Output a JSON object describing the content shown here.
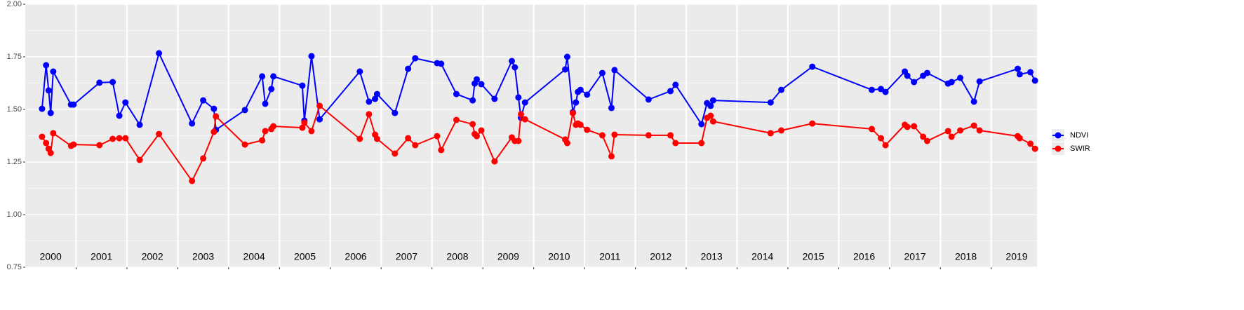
{
  "chart_data": {
    "type": "line",
    "x": [
      2000.33,
      2000.41,
      2000.46,
      2000.5,
      2000.55,
      2000.9,
      2000.95,
      2001.46,
      2001.72,
      2001.85,
      2001.97,
      2002.25,
      2002.63,
      2003.28,
      2003.5,
      2003.71,
      2003.75,
      2004.32,
      2004.66,
      2004.72,
      2004.84,
      2004.88,
      2005.45,
      2005.49,
      2005.63,
      2005.79,
      2006.58,
      2006.76,
      2006.88,
      2006.92,
      2007.27,
      2007.53,
      2007.67,
      2008.1,
      2008.18,
      2008.48,
      2008.8,
      2008.84,
      2008.88,
      2008.97,
      2009.23,
      2009.57,
      2009.63,
      2009.7,
      2009.75,
      2009.83,
      2010.62,
      2010.66,
      2010.77,
      2010.83,
      2010.87,
      2010.92,
      2011.05,
      2011.35,
      2011.53,
      2011.59,
      2012.26,
      2012.69,
      2012.79,
      2013.3,
      2013.41,
      2013.48,
      2013.53,
      2014.66,
      2014.87,
      2015.48,
      2016.65,
      2016.83,
      2016.92,
      2017.3,
      2017.35,
      2017.48,
      2017.66,
      2017.74,
      2018.15,
      2018.22,
      2018.39,
      2018.66,
      2018.77,
      2019.52,
      2019.56,
      2019.77,
      2019.86
    ],
    "series": [
      {
        "name": "NDVI",
        "color": "#0000ff",
        "values": [
          1.503,
          1.71,
          1.59,
          1.483,
          1.68,
          1.523,
          1.523,
          1.627,
          1.63,
          1.47,
          1.533,
          1.427,
          1.767,
          1.433,
          1.543,
          1.503,
          1.403,
          1.497,
          1.657,
          1.527,
          1.597,
          1.657,
          1.613,
          1.447,
          1.753,
          1.453,
          1.68,
          1.537,
          1.55,
          1.573,
          1.483,
          1.693,
          1.743,
          1.72,
          1.717,
          1.573,
          1.543,
          1.623,
          1.643,
          1.62,
          1.55,
          1.73,
          1.7,
          1.557,
          1.46,
          1.533,
          1.69,
          1.75,
          1.487,
          1.533,
          1.583,
          1.593,
          1.57,
          1.673,
          1.507,
          1.687,
          1.547,
          1.587,
          1.617,
          1.43,
          1.53,
          1.517,
          1.543,
          1.533,
          1.593,
          1.703,
          1.593,
          1.597,
          1.583,
          1.68,
          1.66,
          1.63,
          1.66,
          1.673,
          1.623,
          1.63,
          1.65,
          1.537,
          1.633,
          1.693,
          1.667,
          1.677,
          1.637
        ]
      },
      {
        "name": "SWIR",
        "color": "#ff0000",
        "values": [
          1.37,
          1.34,
          1.313,
          1.293,
          1.387,
          1.327,
          1.333,
          1.33,
          1.36,
          1.363,
          1.363,
          1.26,
          1.383,
          1.16,
          1.267,
          1.393,
          1.467,
          1.333,
          1.353,
          1.397,
          1.407,
          1.42,
          1.413,
          1.437,
          1.397,
          1.517,
          1.36,
          1.477,
          1.38,
          1.36,
          1.29,
          1.363,
          1.33,
          1.373,
          1.307,
          1.45,
          1.43,
          1.383,
          1.373,
          1.4,
          1.253,
          1.367,
          1.35,
          1.35,
          1.477,
          1.453,
          1.357,
          1.34,
          1.483,
          1.427,
          1.433,
          1.427,
          1.403,
          1.377,
          1.277,
          1.38,
          1.377,
          1.377,
          1.34,
          1.34,
          1.46,
          1.47,
          1.443,
          1.387,
          1.4,
          1.433,
          1.407,
          1.363,
          1.33,
          1.427,
          1.417,
          1.42,
          1.37,
          1.35,
          1.397,
          1.37,
          1.4,
          1.423,
          1.4,
          1.373,
          1.363,
          1.337,
          1.313
        ]
      }
    ],
    "xlim": [
      2000,
      2019.9
    ],
    "xticks": [
      2001,
      2002,
      2003,
      2004,
      2005,
      2006,
      2007,
      2008,
      2009,
      2010,
      2011,
      2012,
      2013,
      2014,
      2015,
      2016,
      2017,
      2018,
      2019
    ],
    "ylim": [
      0.75,
      2.0
    ],
    "yticks": [
      0.75,
      {
        "value": 1.0,
        "label": "1.00"
      },
      1.25,
      {
        "value": 1.5,
        "label": "1.50"
      },
      1.75,
      {
        "value": 2.0,
        "label": "2.00"
      }
    ],
    "year_labels": [
      "2000",
      "2001",
      "2002",
      "2003",
      "2004",
      "2005",
      "2006",
      "2007",
      "2008",
      "2009",
      "2010",
      "2011",
      "2012",
      "2013",
      "2014",
      "2015",
      "2016",
      "2017",
      "2018",
      "2019"
    ],
    "grid": true,
    "legend": "right"
  }
}
